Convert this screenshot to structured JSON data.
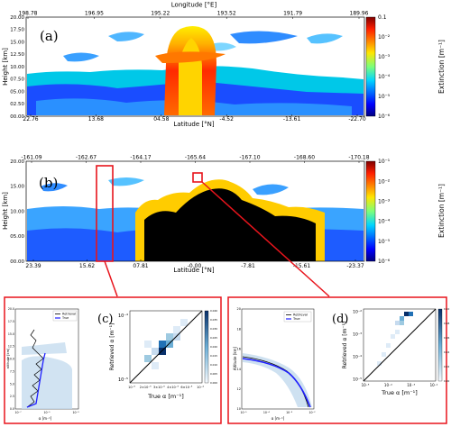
{
  "chart_data": [
    {
      "type": "heatmap",
      "panel_label": "(a)",
      "top_axis": {
        "label": "Longitude [°E]",
        "ticks": [
          "198.78",
          "196.95",
          "195.22",
          "193.52",
          "191.79",
          "189.96"
        ]
      },
      "bottom_axis": {
        "label": "Latitude [°N]",
        "ticks": [
          "22.76",
          "13.68",
          "04.58",
          "-4.52",
          "-13.61",
          "-22.70"
        ]
      },
      "y_axis": {
        "label": "Height [km]",
        "ticks": [
          "00.00",
          "02.50",
          "05.00",
          "07.50",
          "10.00",
          "12.50",
          "15.00",
          "17.50",
          "20.00"
        ],
        "range": [
          0,
          20
        ]
      },
      "colorbar": {
        "label": "Extinction [m⁻¹]",
        "ticks": [
          "10⁻⁶",
          "10⁻⁵",
          "10⁻⁴",
          "10⁻³",
          "10⁻²",
          "0.1"
        ],
        "scale": "log"
      }
    },
    {
      "type": "heatmap",
      "panel_label": "(b)",
      "top_axis": {
        "label": "Longitude [°E]",
        "ticks": [
          "-161.09",
          "-162.67",
          "-164.17",
          "-165.64",
          "-167.10",
          "-168.60",
          "-170.18"
        ]
      },
      "bottom_axis": {
        "label": "Latitude [°N]",
        "ticks": [
          "23.39",
          "15.62",
          "07.81",
          "-0.00",
          "-7.81",
          "-15.61",
          "-23.37"
        ]
      },
      "y_axis": {
        "label": "Height [km]",
        "ticks": [
          "00.00",
          "05.00",
          "10.00",
          "15.00",
          "20.00"
        ],
        "range": [
          0,
          20
        ]
      },
      "colorbar": {
        "label": "Extinction [m⁻¹]",
        "ticks": [
          "10⁻⁶",
          "10⁻⁵",
          "10⁻⁴",
          "10⁻³",
          "10⁻²",
          "10⁻¹"
        ],
        "scale": "log"
      }
    },
    {
      "type": "line",
      "panel": "left-profile-c",
      "legend": [
        "Retrieval",
        "True"
      ],
      "y_axis": {
        "label": "altitude [km]",
        "ticks": [
          "0.0",
          "2.5",
          "5.0",
          "7.5",
          "10.0",
          "12.5",
          "15.0",
          "17.5",
          "20.0"
        ]
      },
      "x_axis": {
        "label": "α [m⁻¹]",
        "ticks": [
          "10⁻⁷",
          "10⁻⁵",
          "10⁻³"
        ]
      }
    },
    {
      "type": "heatmap",
      "panel_label": "(c)",
      "x_axis": {
        "label": "True α [m⁻¹]",
        "ticks": [
          "10⁻⁵",
          "2×10⁻⁵",
          "3×10⁻⁵",
          "4×10⁻⁵",
          "6×10⁻⁵",
          "10⁻⁴"
        ]
      },
      "y_axis": {
        "label": "Retrieved α [m⁻¹]",
        "ticks": [
          "10⁻⁵",
          "10⁻⁴"
        ]
      },
      "colorbar_ticks": [
        "0.000",
        "0.005",
        "0.010",
        "0.015",
        "0.020",
        "0.025",
        "0.030",
        "0.035",
        "0.040"
      ]
    },
    {
      "type": "line",
      "panel": "left-profile-d",
      "legend": [
        "Retrieval",
        "True"
      ],
      "y_axis": {
        "label": "Altitude [km]",
        "ticks": [
          "10",
          "12",
          "14",
          "16",
          "18",
          "20"
        ]
      },
      "x_axis": {
        "label": "α [m⁻¹]",
        "ticks": [
          "10⁻⁵",
          "10⁻⁴",
          "10⁻³",
          "10⁻²"
        ]
      }
    },
    {
      "type": "heatmap",
      "panel_label": "(d)",
      "x_axis": {
        "label": "True α [m⁻¹]",
        "ticks": [
          "10⁻⁵",
          "10⁻⁴",
          "10⁻³",
          "10⁻²"
        ]
      },
      "y_axis": {
        "label": "Retrieved α [m⁻¹]",
        "ticks": [
          "10⁻⁵",
          "10⁻⁴",
          "10⁻³",
          "10⁻²"
        ]
      },
      "colorbar_ticks": [
        "0.00",
        "0.02",
        "0.04",
        "0.06",
        "0.08",
        "0.10"
      ]
    }
  ]
}
